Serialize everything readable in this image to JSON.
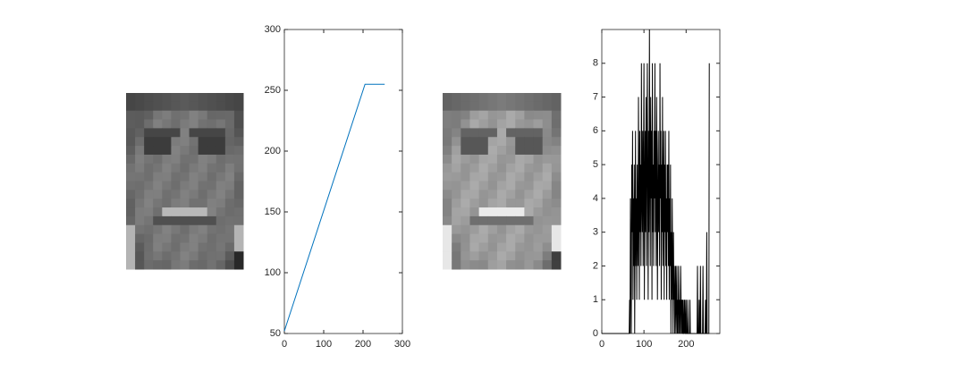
{
  "chart_data": [
    {
      "type": "line",
      "color": "#0072bd",
      "x": [
        0,
        205,
        255
      ],
      "values": [
        52,
        255,
        255
      ],
      "xlim": [
        0,
        300
      ],
      "ylim": [
        50,
        300
      ],
      "xticks": [
        0,
        100,
        200,
        300
      ],
      "yticks": [
        50,
        100,
        150,
        200,
        250,
        300
      ]
    },
    {
      "type": "line",
      "color": "#000000",
      "x": [
        0,
        65,
        66,
        67,
        68,
        69,
        70,
        71,
        72,
        73,
        74,
        75,
        76,
        77,
        78,
        79,
        80,
        81,
        82,
        83,
        84,
        85,
        86,
        87,
        88,
        89,
        90,
        91,
        92,
        93,
        94,
        95,
        96,
        97,
        98,
        99,
        100,
        101,
        102,
        103,
        104,
        105,
        106,
        107,
        108,
        109,
        110,
        111,
        112,
        113,
        114,
        115,
        116,
        117,
        118,
        119,
        120,
        121,
        122,
        123,
        124,
        125,
        126,
        127,
        128,
        129,
        130,
        131,
        132,
        133,
        134,
        135,
        136,
        137,
        138,
        139,
        140,
        141,
        142,
        143,
        144,
        145,
        146,
        147,
        148,
        149,
        150,
        151,
        152,
        153,
        154,
        155,
        156,
        157,
        158,
        159,
        160,
        161,
        162,
        163,
        164,
        165,
        166,
        167,
        168,
        169,
        170,
        171,
        172,
        173,
        174,
        175,
        176,
        177,
        178,
        179,
        180,
        181,
        182,
        183,
        184,
        185,
        186,
        187,
        188,
        189,
        190,
        191,
        192,
        193,
        194,
        195,
        196,
        197,
        198,
        199,
        200,
        201,
        202,
        203,
        204,
        205,
        206,
        207,
        208,
        209,
        210,
        211,
        212,
        213,
        214,
        215,
        216,
        217,
        218,
        219,
        220,
        221,
        222,
        223,
        224,
        225,
        226,
        227,
        228,
        229,
        230,
        231,
        232,
        233,
        234,
        235,
        236,
        237,
        238,
        239,
        240,
        241,
        242,
        243,
        244,
        245,
        246,
        247,
        248,
        249,
        250,
        251,
        252,
        253,
        254,
        255
      ],
      "values": [
        0,
        0,
        1,
        0,
        4,
        2,
        0,
        5,
        3,
        6,
        1,
        4,
        2,
        5,
        0,
        3,
        6,
        2,
        4,
        1,
        5,
        3,
        2,
        7,
        4,
        1,
        6,
        3,
        5,
        2,
        8,
        4,
        3,
        6,
        2,
        5,
        8,
        1,
        4,
        6,
        3,
        7,
        2,
        5,
        8,
        4,
        1,
        6,
        3,
        9,
        5,
        2,
        7,
        4,
        6,
        1,
        8,
        3,
        5,
        2,
        6,
        4,
        8,
        3,
        6,
        2,
        7,
        5,
        1,
        4,
        6,
        3,
        5,
        2,
        8,
        4,
        6,
        1,
        5,
        3,
        7,
        2,
        4,
        6,
        1,
        5,
        3,
        6,
        2,
        4,
        1,
        5,
        3,
        5,
        2,
        6,
        1,
        4,
        2,
        5,
        0,
        3,
        1,
        4,
        2,
        0,
        3,
        1,
        2,
        0,
        1,
        2,
        0,
        1,
        2,
        0,
        1,
        0,
        2,
        1,
        0,
        1,
        0,
        2,
        1,
        0,
        1,
        0,
        1,
        0,
        0,
        1,
        0,
        1,
        0,
        0,
        1,
        0,
        0,
        0,
        1,
        0,
        0,
        0,
        0,
        1,
        0,
        0,
        0,
        0,
        0,
        0,
        0,
        0,
        0,
        0,
        0,
        0,
        0,
        0,
        0,
        0,
        0,
        2,
        0,
        0,
        0,
        1,
        0,
        0,
        2,
        0,
        0,
        0,
        0,
        0,
        2,
        0,
        0,
        0,
        0,
        0,
        1,
        0,
        0,
        3,
        0,
        0,
        0,
        0,
        0,
        8
      ],
      "xlim": [
        0,
        280
      ],
      "ylim": [
        0,
        9
      ],
      "xticks": [
        0,
        100,
        200
      ],
      "yticks": [
        0,
        1,
        2,
        3,
        4,
        5,
        6,
        7,
        8
      ]
    }
  ]
}
